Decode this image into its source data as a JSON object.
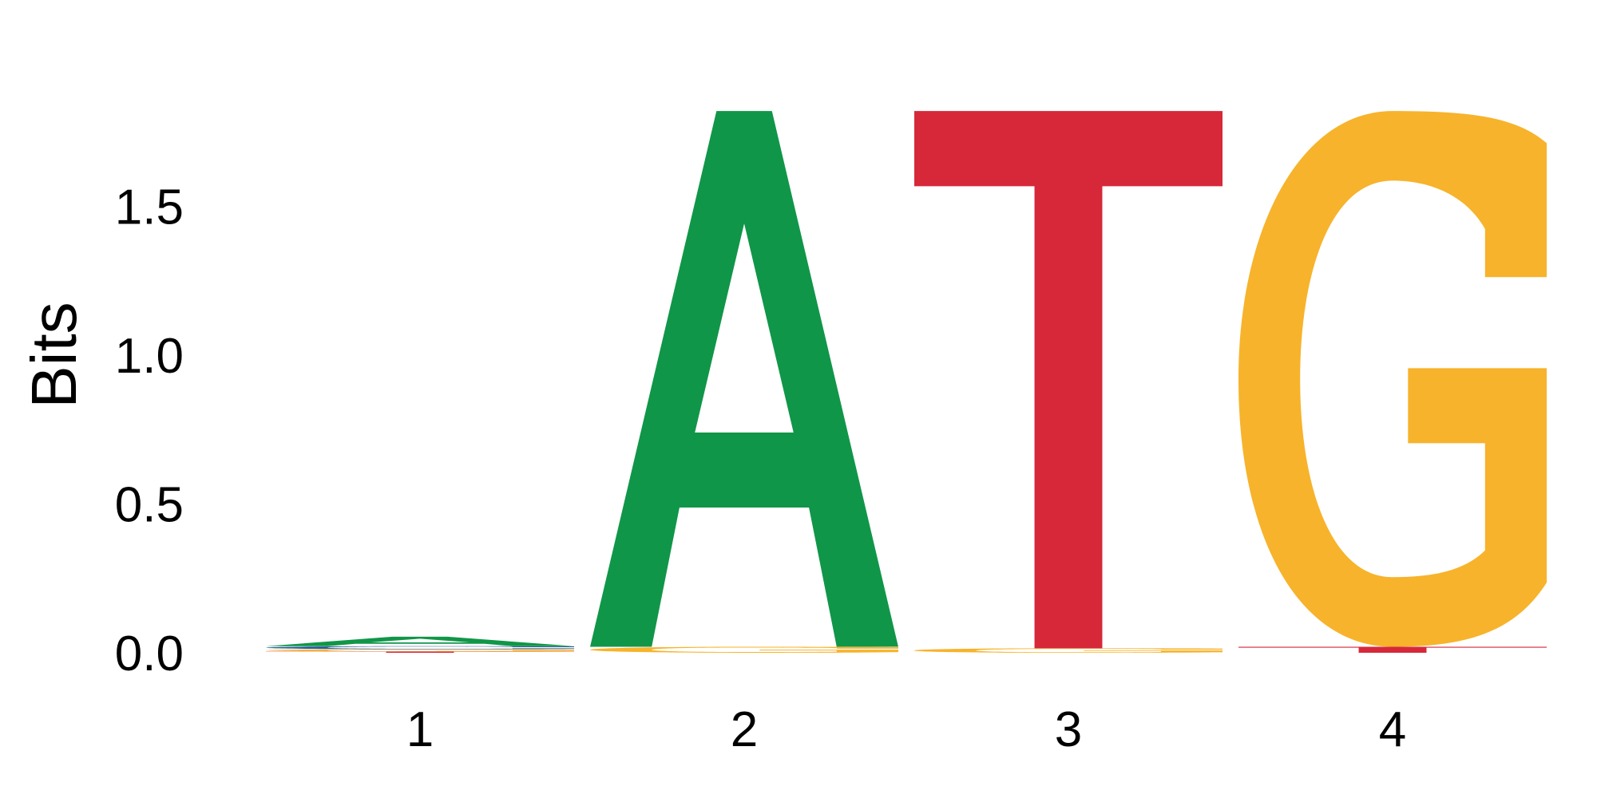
{
  "chart_data": {
    "type": "sequence-logo",
    "ylabel": "Bits",
    "ylim": [
      0,
      2
    ],
    "y_ticks": [
      "0.0",
      "0.5",
      "1.0",
      "1.5"
    ],
    "positions": [
      "1",
      "2",
      "3",
      "4"
    ],
    "colors": {
      "A": "#109648",
      "C": "#255c99",
      "G": "#f7b32b",
      "T": "#d62839"
    },
    "stacks": [
      {
        "position": "1",
        "letters": [
          {
            "base": "T",
            "bits": 0.004
          },
          {
            "base": "G",
            "bits": 0.008
          },
          {
            "base": "C",
            "bits": 0.01
          },
          {
            "base": "A",
            "bits": 0.032
          }
        ]
      },
      {
        "position": "2",
        "letters": [
          {
            "base": "G",
            "bits": 0.02
          },
          {
            "base": "A",
            "bits": 1.8
          }
        ]
      },
      {
        "position": "3",
        "letters": [
          {
            "base": "G",
            "bits": 0.015
          },
          {
            "base": "T",
            "bits": 1.805
          }
        ]
      },
      {
        "position": "4",
        "letters": [
          {
            "base": "T",
            "bits": 0.02
          },
          {
            "base": "G",
            "bits": 1.8
          }
        ]
      }
    ]
  }
}
